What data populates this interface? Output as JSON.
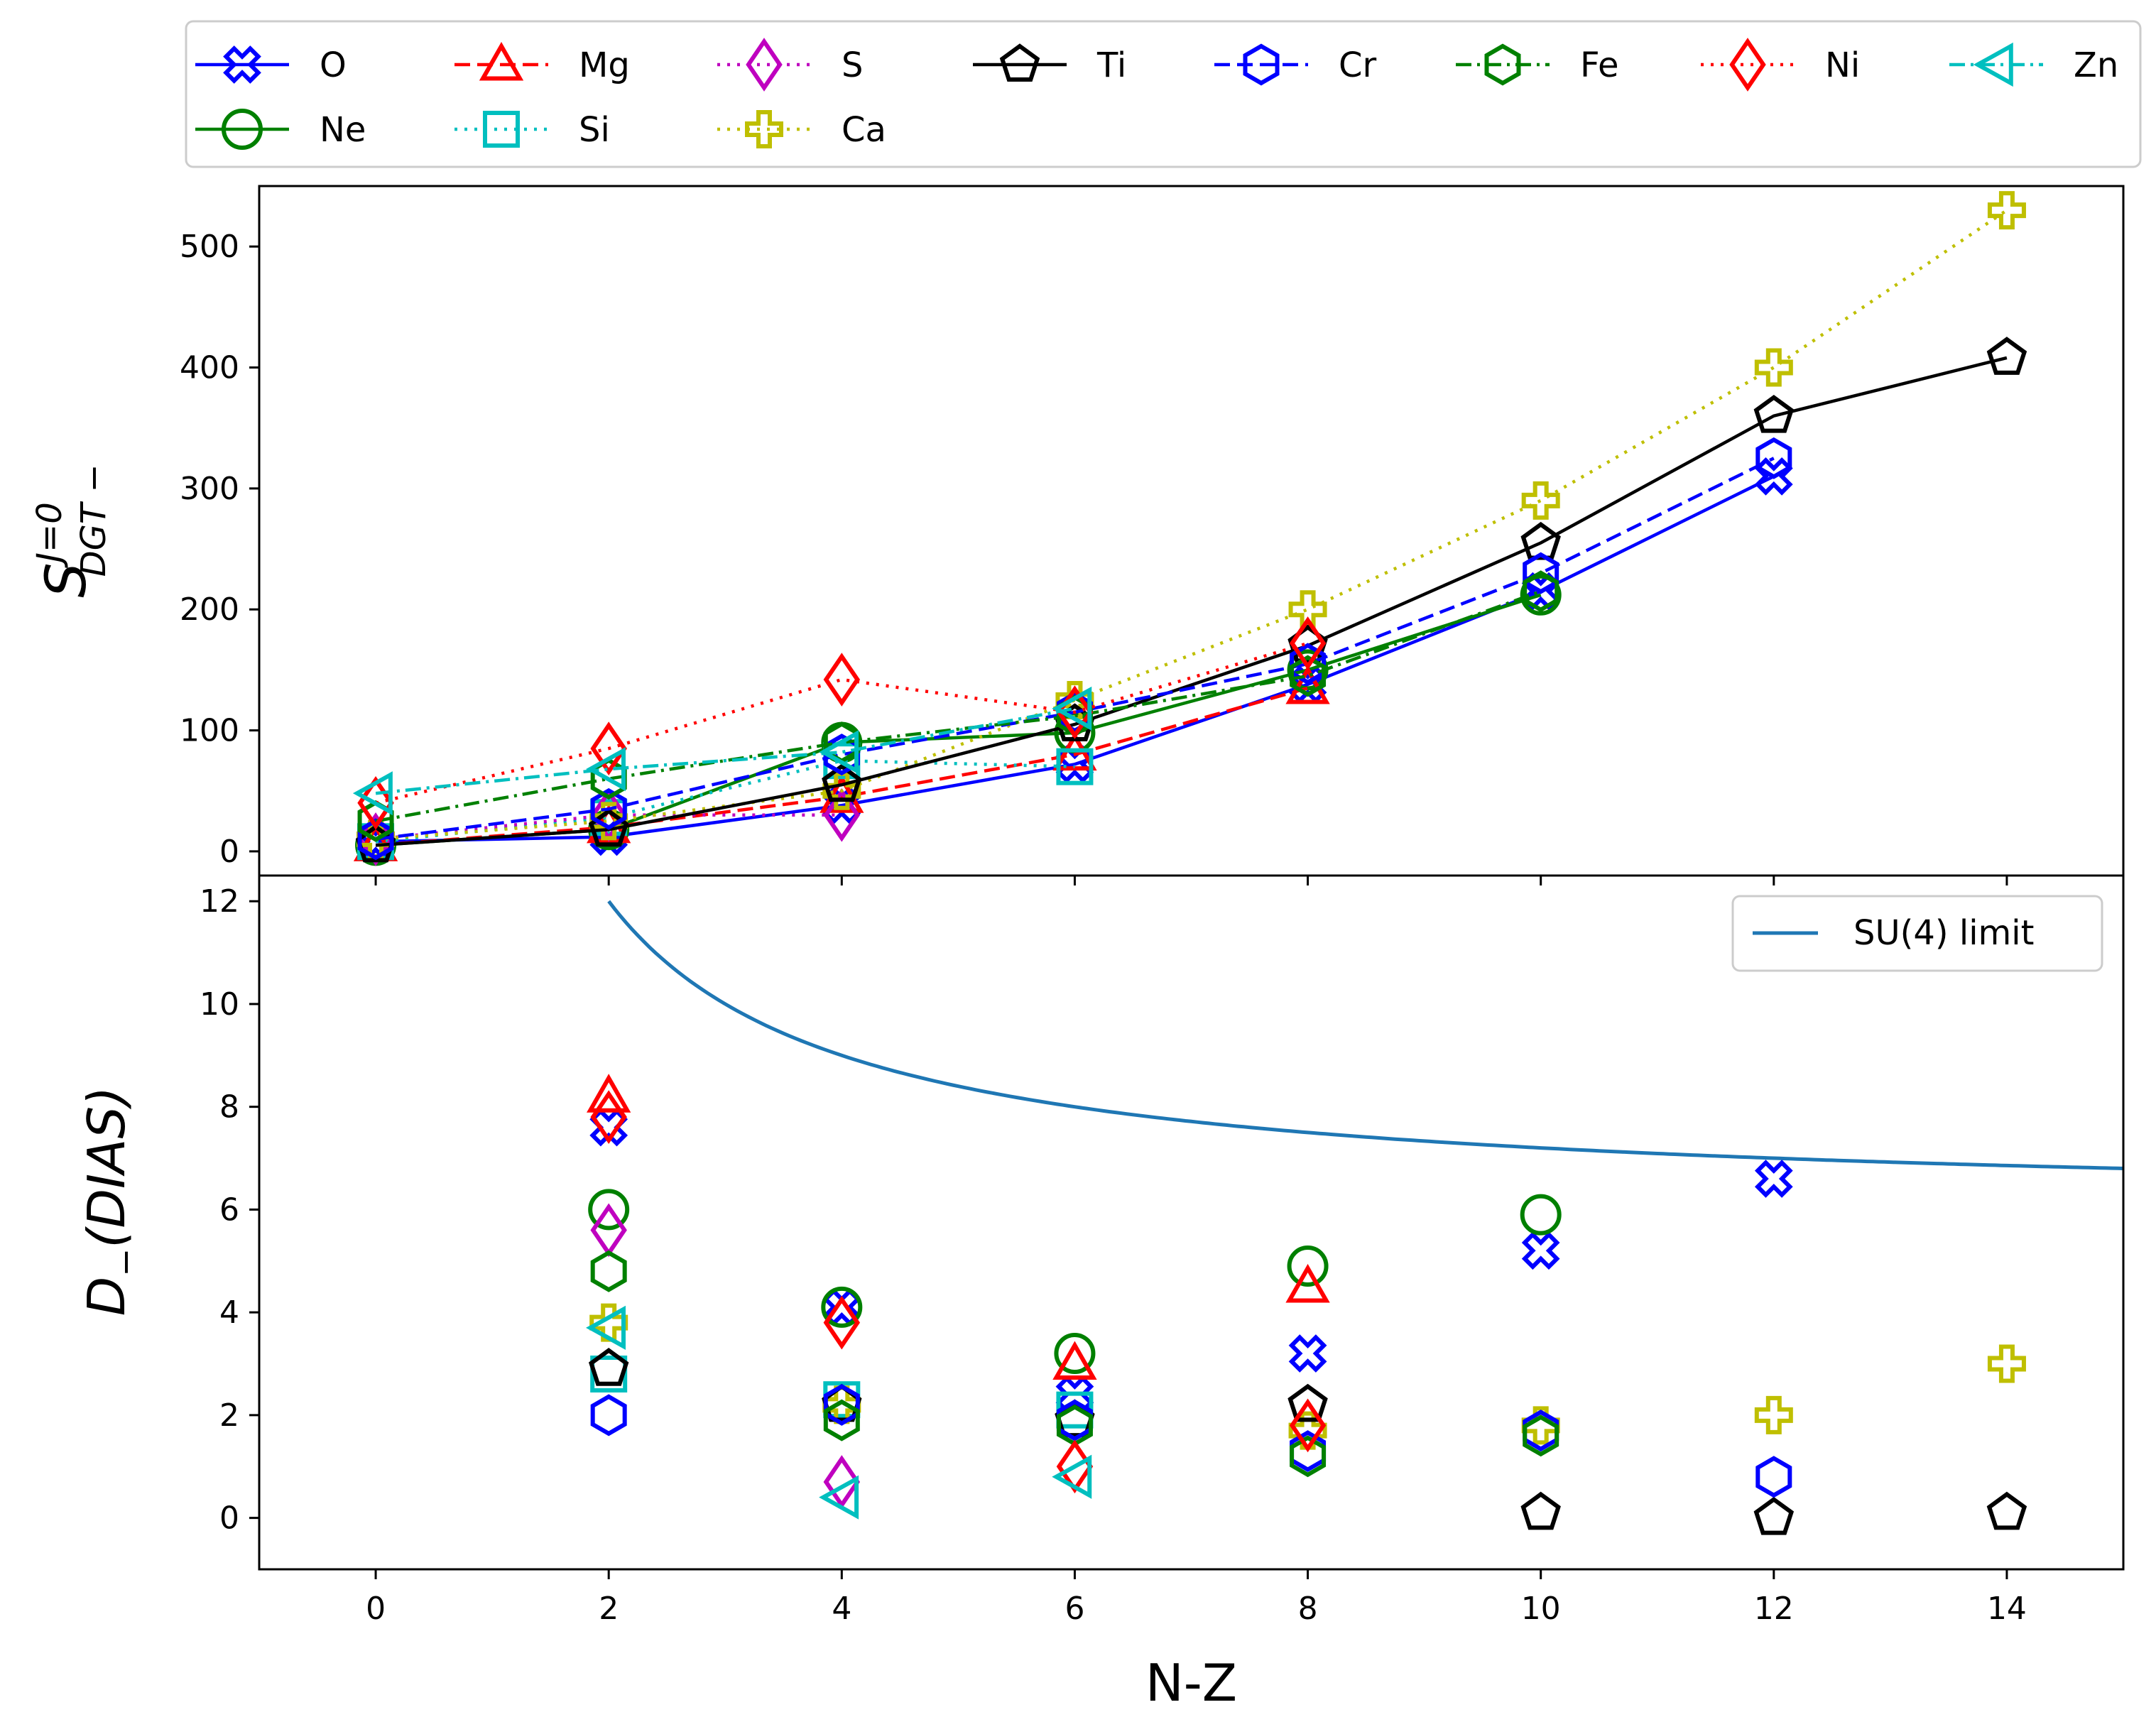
{
  "chart_data": [
    {
      "type": "line",
      "panel": "top",
      "title": "",
      "xlabel": "",
      "ylabel": "S_DGT-^{J=0}",
      "ylabel_parts": {
        "base": "S",
        "superscript": "J=0",
        "subscript": "DGT −"
      },
      "xlim": [
        -1,
        15
      ],
      "ylim": [
        -20,
        550
      ],
      "xticks": [
        0,
        2,
        4,
        6,
        8,
        10,
        12,
        14
      ],
      "yticks": [
        0,
        100,
        200,
        300,
        400,
        500
      ],
      "ytick_labels": [
        "0",
        "100",
        "200",
        "300",
        "400",
        "500"
      ],
      "series": [
        {
          "name": "O",
          "color": "#0000ff",
          "marker": "plus-x",
          "linestyle": "solid",
          "x": [
            0,
            2,
            4,
            6,
            8,
            10,
            12
          ],
          "y": [
            8,
            12,
            38,
            72,
            138,
            215,
            310
          ]
        },
        {
          "name": "Ne",
          "color": "#008000",
          "marker": "circle",
          "linestyle": "solid",
          "x": [
            0,
            2,
            4,
            6,
            8,
            10
          ],
          "y": [
            5,
            18,
            90,
            98,
            150,
            212
          ]
        },
        {
          "name": "Mg",
          "color": "#ff0000",
          "marker": "triangle",
          "linestyle": "dashed",
          "x": [
            0,
            2,
            4,
            6,
            8
          ],
          "y": [
            5,
            20,
            45,
            80,
            135
          ]
        },
        {
          "name": "Si",
          "color": "#00bfbf",
          "marker": "square",
          "linestyle": "dotted",
          "x": [
            0,
            2,
            4,
            6
          ],
          "y": [
            8,
            28,
            75,
            70
          ]
        },
        {
          "name": "S",
          "color": "#bf00bf",
          "marker": "diamond",
          "linestyle": "dotted",
          "x": [
            0,
            2,
            4
          ],
          "y": [
            10,
            30,
            30
          ]
        },
        {
          "name": "Ca",
          "color": "#bfbf00",
          "marker": "plus",
          "linestyle": "dotted",
          "x": [
            0,
            2,
            4,
            6,
            8,
            10,
            12,
            14
          ],
          "y": [
            10,
            25,
            50,
            125,
            200,
            290,
            400,
            530
          ]
        },
        {
          "name": "Ti",
          "color": "#000000",
          "marker": "pentagon",
          "linestyle": "solid",
          "x": [
            0,
            2,
            4,
            6,
            8,
            10,
            12,
            14
          ],
          "y": [
            5,
            18,
            55,
            105,
            170,
            255,
            360,
            408
          ]
        },
        {
          "name": "Cr",
          "color": "#0000ff",
          "marker": "hexagon",
          "linestyle": "dashed",
          "x": [
            0,
            2,
            4,
            6,
            8,
            10,
            12
          ],
          "y": [
            10,
            35,
            80,
            115,
            155,
            230,
            325
          ]
        },
        {
          "name": "Fe",
          "color": "#008000",
          "marker": "hexagon",
          "linestyle": "dashdot",
          "x": [
            0,
            2,
            4,
            6,
            8,
            10
          ],
          "y": [
            25,
            60,
            90,
            112,
            145,
            215
          ]
        },
        {
          "name": "Ni",
          "color": "#ff0000",
          "marker": "diamond",
          "linestyle": "dotted",
          "x": [
            0,
            2,
            4,
            6,
            8
          ],
          "y": [
            40,
            85,
            142,
            115,
            172
          ]
        },
        {
          "name": "Zn",
          "color": "#00bfbf",
          "marker": "triangle-left",
          "linestyle": "dashdot",
          "x": [
            0,
            2,
            4,
            6
          ],
          "y": [
            48,
            68,
            82,
            118
          ]
        }
      ]
    },
    {
      "type": "scatter",
      "panel": "bottom",
      "title": "",
      "xlabel": "N-Z",
      "ylabel": "D_−(DIAS)",
      "ylabel_parts": {
        "base": "D",
        "subscript": "−",
        "rest": "(DIAS)"
      },
      "xlim": [
        -1,
        15
      ],
      "ylim": [
        -1,
        12.5
      ],
      "xticks": [
        0,
        2,
        4,
        6,
        8,
        10,
        12,
        14
      ],
      "xtick_labels": [
        "0",
        "2",
        "4",
        "6",
        "8",
        "10",
        "12",
        "14"
      ],
      "yticks": [
        0,
        2,
        4,
        6,
        8,
        10,
        12
      ],
      "ytick_labels": [
        "0",
        "2",
        "4",
        "6",
        "8",
        "10",
        "12"
      ],
      "reference_curve": {
        "name": "SU(4) limit",
        "color": "#1f77b4",
        "x_start": 2,
        "x_end": 15,
        "formula": "6 + 12/x",
        "legend_position": "top-right"
      },
      "series": [
        {
          "name": "O",
          "x": [
            2,
            4,
            6,
            8,
            10,
            12
          ],
          "y": [
            7.6,
            4.1,
            2.4,
            3.2,
            5.2,
            6.6
          ]
        },
        {
          "name": "Ne",
          "x": [
            2,
            4,
            6,
            8,
            10
          ],
          "y": [
            6.0,
            4.1,
            3.2,
            4.9,
            5.9
          ]
        },
        {
          "name": "Mg",
          "x": [
            2,
            6,
            8
          ],
          "y": [
            8.2,
            3.0,
            4.5
          ]
        },
        {
          "name": "Si",
          "x": [
            2,
            4,
            6
          ],
          "y": [
            2.8,
            2.3,
            2.1
          ]
        },
        {
          "name": "S",
          "x": [
            2,
            4
          ],
          "y": [
            5.6,
            0.7
          ]
        },
        {
          "name": "Ca",
          "x": [
            2,
            4,
            8,
            10,
            12,
            14
          ],
          "y": [
            3.8,
            2.2,
            1.7,
            1.8,
            2.0,
            3.0
          ]
        },
        {
          "name": "Ti",
          "x": [
            2,
            4,
            6,
            8,
            10,
            12,
            14
          ],
          "y": [
            2.9,
            2.2,
            1.9,
            2.2,
            0.1,
            0.0,
            0.1
          ]
        },
        {
          "name": "Cr",
          "x": [
            2,
            4,
            6,
            8,
            10,
            12
          ],
          "y": [
            2.0,
            2.2,
            1.9,
            1.3,
            1.7,
            0.8
          ]
        },
        {
          "name": "Fe",
          "x": [
            2,
            4,
            6,
            8,
            10
          ],
          "y": [
            4.8,
            1.9,
            1.8,
            1.2,
            1.6
          ]
        },
        {
          "name": "Ni",
          "x": [
            2,
            4,
            6,
            8
          ],
          "y": [
            7.8,
            3.8,
            1.0,
            1.8
          ]
        },
        {
          "name": "Zn",
          "x": [
            2,
            4,
            6
          ],
          "y": [
            3.7,
            0.4,
            0.8
          ]
        }
      ]
    }
  ],
  "legend": {
    "position": "top",
    "items": [
      {
        "name": "O",
        "label": "O"
      },
      {
        "name": "Mg",
        "label": "Mg"
      },
      {
        "name": "S",
        "label": "S"
      },
      {
        "name": "Ti",
        "label": "Ti"
      },
      {
        "name": "Cr",
        "label": "Cr"
      },
      {
        "name": "Fe",
        "label": "Fe"
      },
      {
        "name": "Ni",
        "label": "Ni"
      },
      {
        "name": "Zn",
        "label": "Zn"
      },
      {
        "name": "Ne",
        "label": "Ne"
      },
      {
        "name": "Si",
        "label": "Si"
      },
      {
        "name": "Ca",
        "label": "Ca"
      }
    ]
  }
}
